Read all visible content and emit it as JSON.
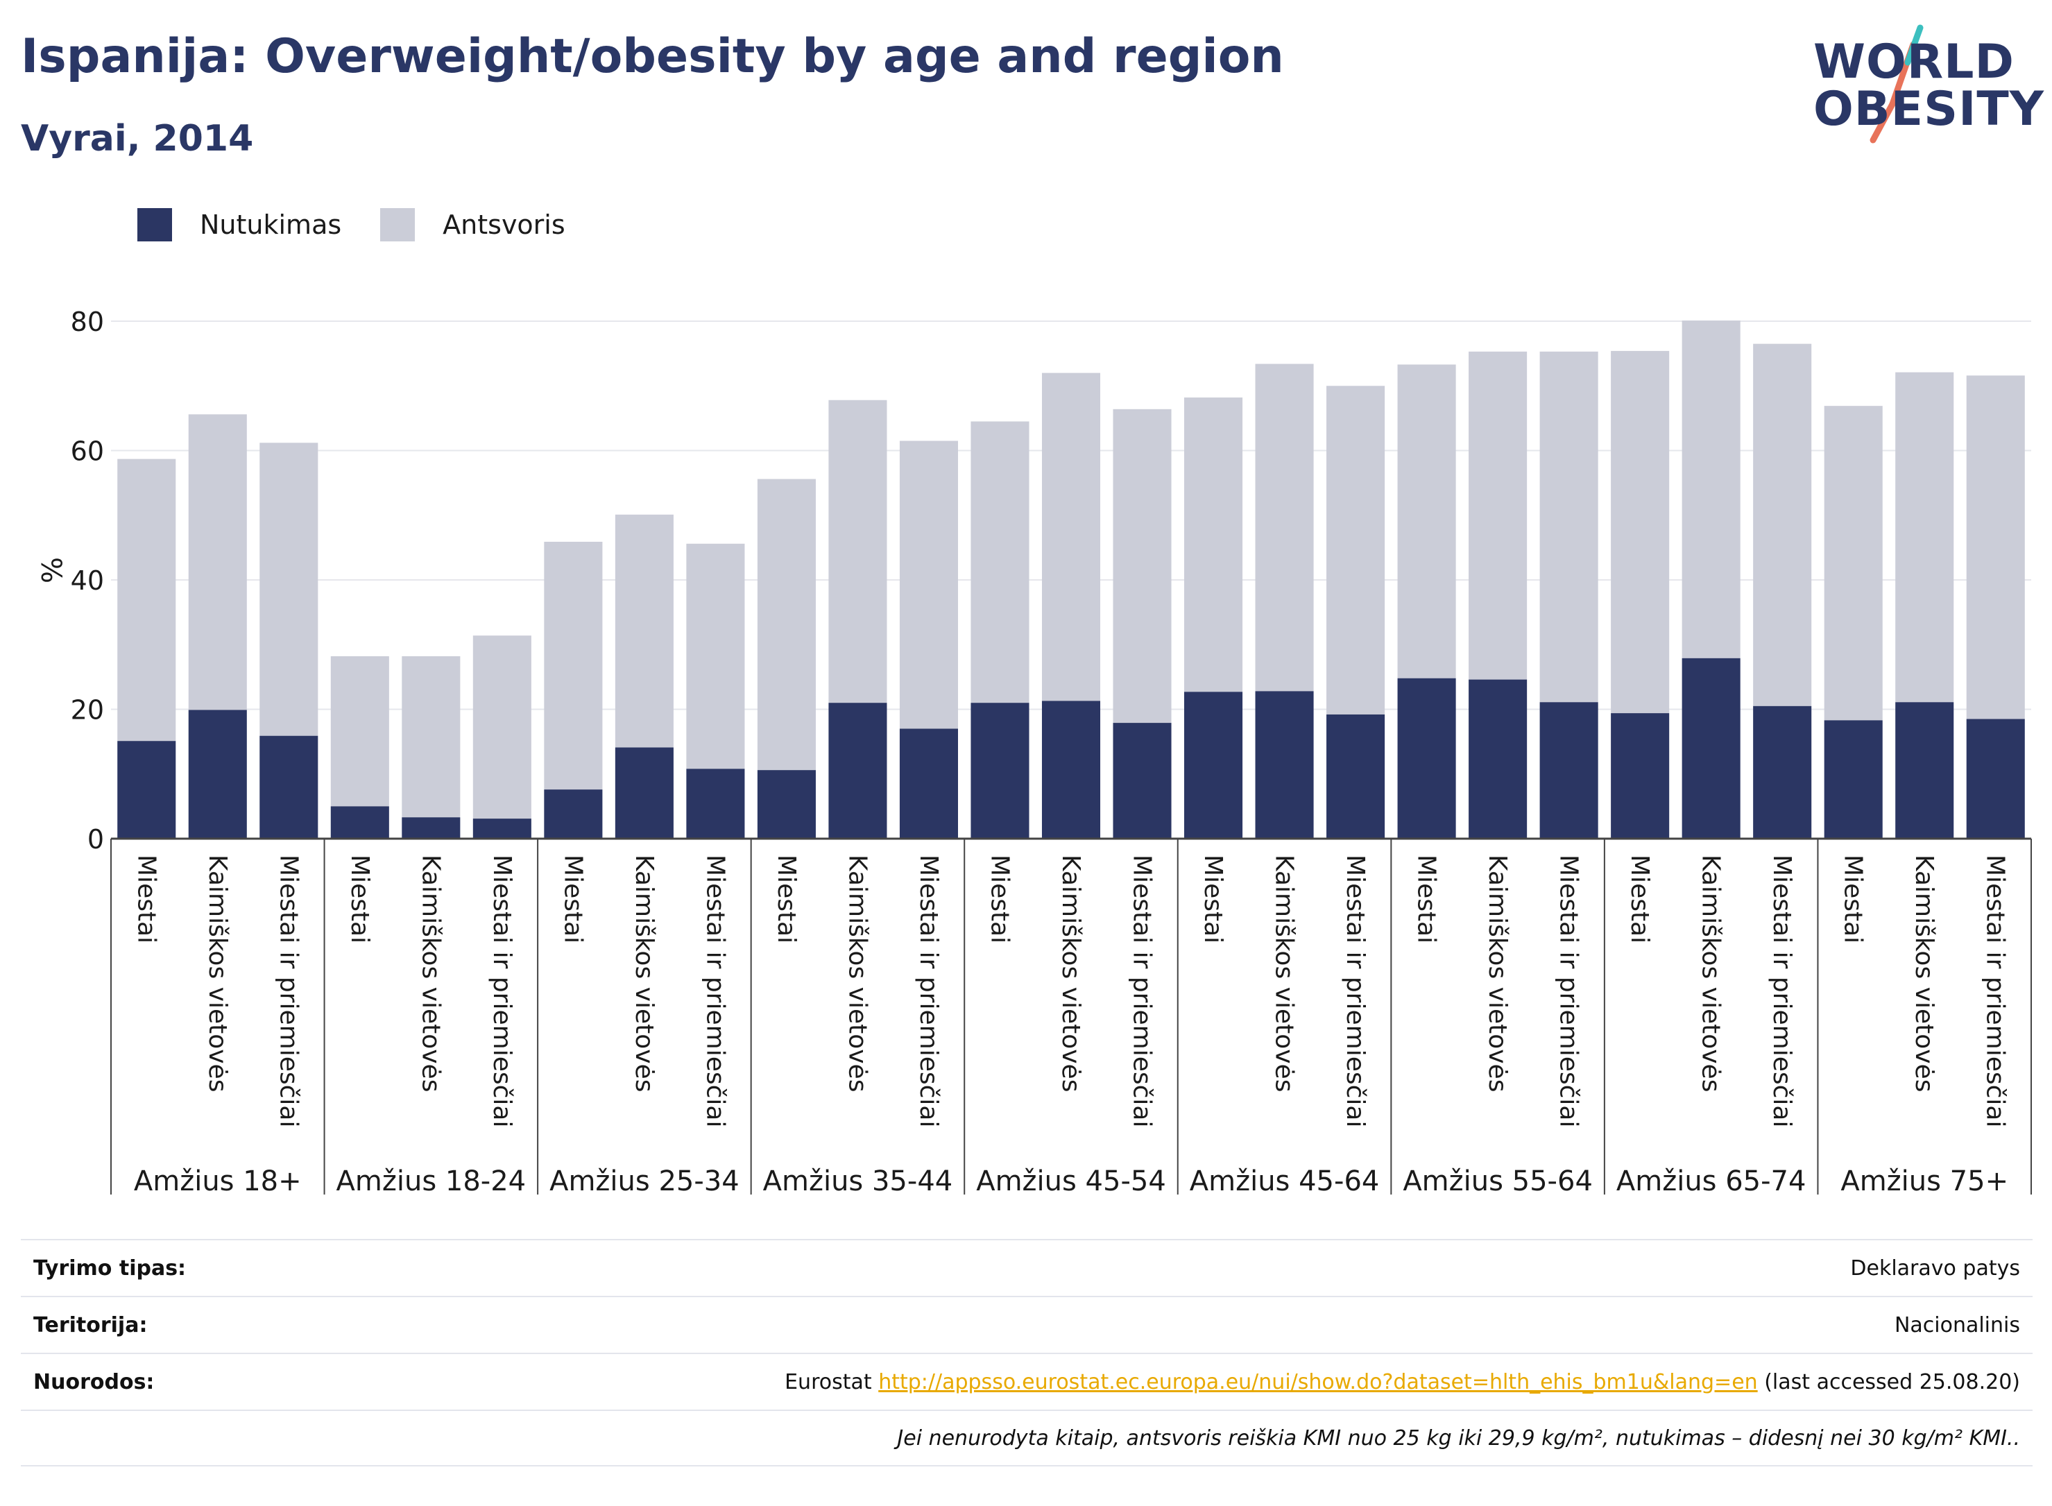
{
  "header": {
    "title": "Ispanija: Overweight/obesity by age and region",
    "subtitle": "Vyrai, 2014"
  },
  "logo": {
    "line1": "WORLD",
    "line2": "OBESITY"
  },
  "colors": {
    "obesity": "#2b3663",
    "overweight": "#cbcdd8",
    "title": "#2a3766",
    "link": "#e8a900",
    "grid": "#e6e7ec"
  },
  "legend": [
    {
      "label": "Nutukimas",
      "color": "#2b3663"
    },
    {
      "label": "Antsvoris",
      "color": "#cbcdd8"
    }
  ],
  "chart_data": {
    "type": "bar",
    "stacked": true,
    "ylabel": "%",
    "ylim": [
      0,
      80
    ],
    "yticks": [
      0,
      20,
      40,
      60,
      80
    ],
    "grid": true,
    "legend_position": "top-left",
    "groups": [
      {
        "label": "Amžius 18+",
        "categories": [
          "Miestai",
          "Kaimiškos vietovės",
          "Miestai ir priemiesčiai"
        ],
        "obesity": [
          15.1,
          19.9,
          15.9
        ],
        "overweight": [
          43.6,
          45.7,
          45.3
        ]
      },
      {
        "label": "Amžius 18-24",
        "categories": [
          "Miestai",
          "Kaimiškos vietovės",
          "Miestai ir priemiesčiai"
        ],
        "obesity": [
          5.0,
          3.3,
          3.1
        ],
        "overweight": [
          23.2,
          24.9,
          28.3
        ]
      },
      {
        "label": "Amžius 25-34",
        "categories": [
          "Miestai",
          "Kaimiškos vietovės",
          "Miestai ir priemiesčiai"
        ],
        "obesity": [
          7.6,
          14.1,
          10.8
        ],
        "overweight": [
          38.3,
          36.0,
          34.8
        ]
      },
      {
        "label": "Amžius 35-44",
        "categories": [
          "Miestai",
          "Kaimiškos vietovės",
          "Miestai ir priemiesčiai"
        ],
        "obesity": [
          10.6,
          21.0,
          17.0
        ],
        "overweight": [
          45.0,
          46.8,
          44.5
        ]
      },
      {
        "label": "Amžius 45-54",
        "categories": [
          "Miestai",
          "Kaimiškos vietovės",
          "Miestai ir priemiesčiai"
        ],
        "obesity": [
          21.0,
          21.3,
          17.9
        ],
        "overweight": [
          43.5,
          50.7,
          48.5
        ]
      },
      {
        "label": "Amžius 45-64",
        "categories": [
          "Miestai",
          "Kaimiškos vietovės",
          "Miestai ir priemiesčiai"
        ],
        "obesity": [
          22.7,
          22.8,
          19.2
        ],
        "overweight": [
          45.5,
          50.6,
          50.8
        ]
      },
      {
        "label": "Amžius 55-64",
        "categories": [
          "Miestai",
          "Kaimiškos vietovės",
          "Miestai ir priemiesčiai"
        ],
        "obesity": [
          24.8,
          24.6,
          21.1
        ],
        "overweight": [
          48.5,
          50.7,
          54.2
        ]
      },
      {
        "label": "Amžius 65-74",
        "categories": [
          "Miestai",
          "Kaimiškos vietovės",
          "Miestai ir priemiesčiai"
        ],
        "obesity": [
          19.4,
          27.9,
          20.5
        ],
        "overweight": [
          56.0,
          52.2,
          56.0
        ]
      },
      {
        "label": "Amžius 75+",
        "categories": [
          "Miestai",
          "Kaimiškos vietovės",
          "Miestai ir priemiesčiai"
        ],
        "obesity": [
          18.3,
          21.1,
          18.5
        ],
        "overweight": [
          48.6,
          51.0,
          53.1
        ]
      }
    ]
  },
  "meta": {
    "survey_label": "Tyrimo tipas:",
    "survey_value": "Deklaravo patys",
    "territory_label": "Teritorija:",
    "territory_value": "Nacionalinis",
    "refs_label": "Nuorodos:",
    "refs_source": "Eurostat",
    "refs_url": "http://appsso.eurostat.ec.europa.eu/nui/show.do?dataset=hlth_ehis_bm1u&lang=en",
    "refs_accessed": "(last accessed 25.08.20)",
    "note": "Jei nenurodyta kitaip, antsvoris reiškia KMI nuo 25 kg iki 29,9 kg/m², nutukimas – didesnį nei 30 kg/m² KMI.."
  }
}
